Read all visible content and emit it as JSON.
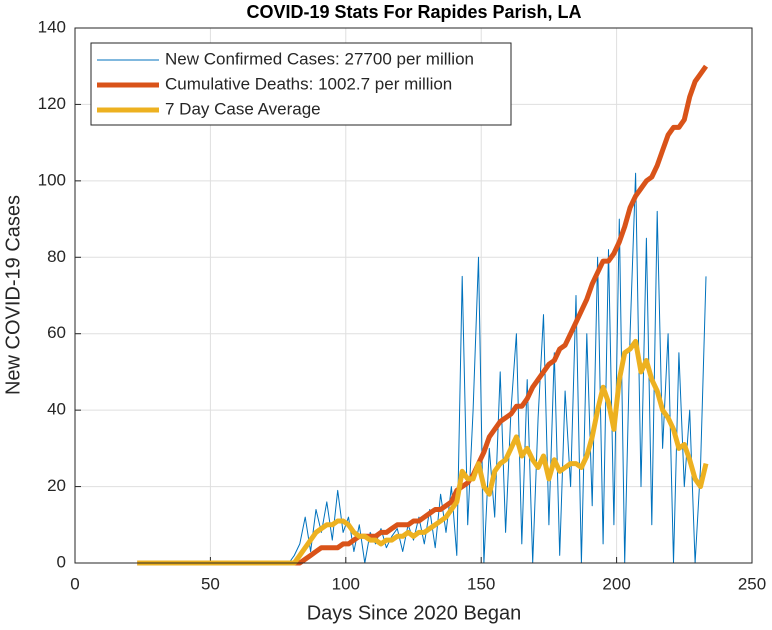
{
  "chart_data": {
    "type": "line",
    "title": "COVID-19 Stats For Rapides Parish, LA",
    "xlabel": "Days Since 2020 Began",
    "ylabel": "New COVID-19 Cases",
    "xlim": [
      0,
      250
    ],
    "xticks": [
      0,
      50,
      100,
      150,
      200,
      250
    ],
    "ylim": [
      0,
      140
    ],
    "yticks": [
      0,
      20,
      40,
      60,
      80,
      100,
      120,
      140
    ],
    "grid": true,
    "legend": "northwest",
    "x": [
      23,
      25,
      27,
      29,
      31,
      33,
      35,
      37,
      39,
      41,
      43,
      45,
      47,
      49,
      51,
      53,
      55,
      57,
      59,
      61,
      63,
      65,
      67,
      69,
      71,
      73,
      75,
      77,
      79,
      81,
      83,
      85,
      87,
      89,
      91,
      93,
      95,
      97,
      99,
      101,
      103,
      105,
      107,
      109,
      111,
      113,
      115,
      117,
      119,
      121,
      123,
      125,
      127,
      129,
      131,
      133,
      135,
      137,
      139,
      141,
      143,
      145,
      147,
      149,
      151,
      153,
      155,
      157,
      159,
      161,
      163,
      165,
      167,
      169,
      171,
      173,
      175,
      177,
      179,
      181,
      183,
      185,
      187,
      189,
      191,
      193,
      195,
      197,
      199,
      201,
      203,
      205,
      207,
      209,
      211,
      213,
      215,
      217,
      219,
      221,
      223,
      225,
      227,
      229,
      231,
      233
    ],
    "series": [
      {
        "name": "New Confirmed Cases: 27700 per million",
        "color": "#0072bd",
        "values": [
          0,
          0,
          0,
          0,
          0,
          0,
          0,
          0,
          0,
          0,
          0,
          0,
          0,
          0,
          0,
          0,
          0,
          0,
          0,
          0,
          0,
          0,
          0,
          0,
          0,
          0,
          0,
          0,
          0,
          2,
          5,
          12,
          3,
          14,
          8,
          16,
          6,
          19,
          8,
          12,
          3,
          10,
          0,
          8,
          5,
          9,
          4,
          7,
          9,
          3,
          10,
          6,
          12,
          5,
          14,
          4,
          18,
          8,
          20,
          2,
          75,
          10,
          40,
          80,
          0,
          30,
          12,
          50,
          8,
          40,
          60,
          5,
          48,
          0,
          38,
          65,
          10,
          55,
          2,
          45,
          20,
          70,
          0,
          60,
          15,
          80,
          5,
          82,
          10,
          90,
          0,
          60,
          102,
          20,
          85,
          10,
          92,
          30,
          60,
          0,
          55,
          20,
          40,
          0,
          25,
          75
        ]
      },
      {
        "name": "Cumulative Deaths: 1002.7 per million",
        "color": "#d95319",
        "values": [
          0,
          0,
          0,
          0,
          0,
          0,
          0,
          0,
          0,
          0,
          0,
          0,
          0,
          0,
          0,
          0,
          0,
          0,
          0,
          0,
          0,
          0,
          0,
          0,
          0,
          0,
          0,
          0,
          0,
          0,
          0,
          1,
          2,
          3,
          4,
          4,
          4,
          4,
          5,
          5,
          6,
          7,
          7,
          7,
          7,
          8,
          8,
          9,
          10,
          10,
          10,
          11,
          11,
          12,
          13,
          14,
          14,
          15,
          16,
          19,
          20,
          21,
          23,
          26,
          29,
          33,
          35,
          37,
          38,
          39,
          41,
          41,
          43,
          46,
          48,
          50,
          52,
          53,
          56,
          57,
          60,
          63,
          66,
          69,
          73,
          76,
          79,
          79,
          81,
          84,
          88,
          93,
          96,
          98,
          100,
          101,
          104,
          108,
          112,
          114,
          114,
          116,
          122,
          126,
          128,
          130
        ]
      },
      {
        "name": "7 Day Case Average",
        "color": "#edb120",
        "values": [
          0,
          0,
          0,
          0,
          0,
          0,
          0,
          0,
          0,
          0,
          0,
          0,
          0,
          0,
          0,
          0,
          0,
          0,
          0,
          0,
          0,
          0,
          0,
          0,
          0,
          0,
          0,
          0,
          0,
          0,
          2,
          4,
          6,
          8,
          9,
          10,
          10,
          11,
          11,
          10,
          8,
          7,
          7,
          6,
          6,
          5,
          6,
          6,
          7,
          7,
          8,
          7,
          8,
          8,
          9,
          10,
          11,
          12,
          14,
          16,
          24,
          22,
          22,
          26,
          20,
          18,
          24,
          26,
          27,
          30,
          33,
          28,
          30,
          27,
          25,
          28,
          22,
          27,
          24,
          25,
          26,
          26,
          25,
          28,
          33,
          40,
          46,
          42,
          35,
          48,
          55,
          56,
          58,
          50,
          53,
          48,
          45,
          40,
          38,
          35,
          30,
          31,
          27,
          22,
          20,
          26
        ]
      }
    ]
  }
}
